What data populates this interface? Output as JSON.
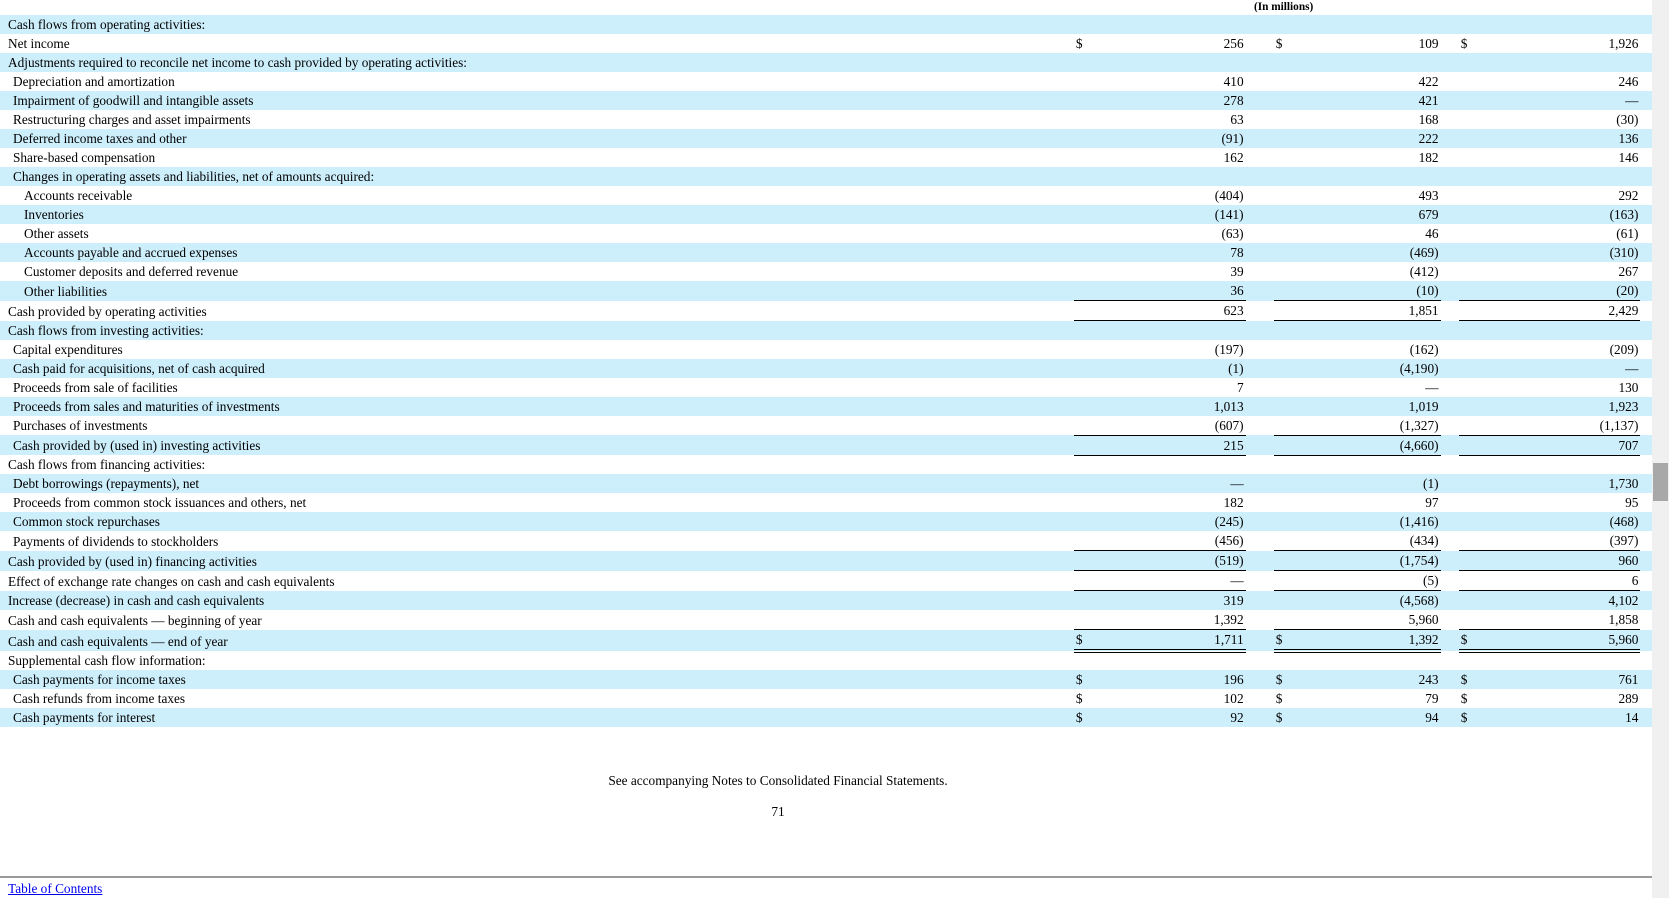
{
  "header": {
    "units_label": "(In millions)"
  },
  "table": {
    "rows": [
      {
        "label": "Cash flows from operating activities:",
        "indent": 0,
        "shade": true,
        "border": "none",
        "dollar": false,
        "values": null
      },
      {
        "label": "Net income",
        "indent": 0,
        "shade": false,
        "border": "none",
        "dollar": true,
        "values": [
          "256",
          "109",
          "1,926"
        ]
      },
      {
        "label": "Adjustments required to reconcile net income to cash provided by operating activities:",
        "indent": 0,
        "shade": true,
        "border": "none",
        "dollar": false,
        "values": null
      },
      {
        "label": "Depreciation and amortization",
        "indent": 1,
        "shade": false,
        "border": "none",
        "dollar": false,
        "values": [
          "410",
          "422",
          "246"
        ]
      },
      {
        "label": "Impairment of goodwill and intangible assets",
        "indent": 1,
        "shade": true,
        "border": "none",
        "dollar": false,
        "values": [
          "278",
          "421",
          "—"
        ]
      },
      {
        "label": "Restructuring charges and asset impairments",
        "indent": 1,
        "shade": false,
        "border": "none",
        "dollar": false,
        "values": [
          "63",
          "168",
          "(30)"
        ]
      },
      {
        "label": "Deferred income taxes and other",
        "indent": 1,
        "shade": true,
        "border": "none",
        "dollar": false,
        "values": [
          "(91)",
          "222",
          "136"
        ]
      },
      {
        "label": "Share-based compensation",
        "indent": 1,
        "shade": false,
        "border": "none",
        "dollar": false,
        "values": [
          "162",
          "182",
          "146"
        ]
      },
      {
        "label": "Changes in operating assets and liabilities, net of amounts acquired:",
        "indent": 1,
        "shade": true,
        "border": "none",
        "dollar": false,
        "values": null
      },
      {
        "label": "Accounts receivable",
        "indent": 2,
        "shade": false,
        "border": "none",
        "dollar": false,
        "values": [
          "(404)",
          "493",
          "292"
        ]
      },
      {
        "label": "Inventories",
        "indent": 2,
        "shade": true,
        "border": "none",
        "dollar": false,
        "values": [
          "(141)",
          "679",
          "(163)"
        ]
      },
      {
        "label": "Other assets",
        "indent": 2,
        "shade": false,
        "border": "none",
        "dollar": false,
        "values": [
          "(63)",
          "46",
          "(61)"
        ]
      },
      {
        "label": "Accounts payable and accrued expenses",
        "indent": 2,
        "shade": true,
        "border": "none",
        "dollar": false,
        "values": [
          "78",
          "(469)",
          "(310)"
        ]
      },
      {
        "label": "Customer deposits and deferred revenue",
        "indent": 2,
        "shade": false,
        "border": "none",
        "dollar": false,
        "values": [
          "39",
          "(412)",
          "267"
        ]
      },
      {
        "label": "Other liabilities",
        "indent": 2,
        "shade": true,
        "border": "single",
        "dollar": false,
        "values": [
          "36",
          "(10)",
          "(20)"
        ]
      },
      {
        "label": "Cash provided by operating activities",
        "indent": 0,
        "shade": false,
        "border": "single",
        "dollar": false,
        "values": [
          "623",
          "1,851",
          "2,429"
        ]
      },
      {
        "label": "Cash flows from investing activities:",
        "indent": 0,
        "shade": true,
        "border": "none",
        "dollar": false,
        "values": null
      },
      {
        "label": "Capital expenditures",
        "indent": 1,
        "shade": false,
        "border": "none",
        "dollar": false,
        "values": [
          "(197)",
          "(162)",
          "(209)"
        ]
      },
      {
        "label": "Cash paid for acquisitions, net of cash acquired",
        "indent": 1,
        "shade": true,
        "border": "none",
        "dollar": false,
        "values": [
          "(1)",
          "(4,190)",
          "—"
        ]
      },
      {
        "label": "Proceeds from sale of facilities",
        "indent": 1,
        "shade": false,
        "border": "none",
        "dollar": false,
        "values": [
          "7",
          "—",
          "130"
        ]
      },
      {
        "label": "Proceeds from sales and maturities of investments",
        "indent": 1,
        "shade": true,
        "border": "none",
        "dollar": false,
        "values": [
          "1,013",
          "1,019",
          "1,923"
        ]
      },
      {
        "label": "Purchases of investments",
        "indent": 1,
        "shade": false,
        "border": "single",
        "dollar": false,
        "values": [
          "(607)",
          "(1,327)",
          "(1,137)"
        ]
      },
      {
        "label": "Cash provided by (used in) investing activities",
        "indent": 1,
        "shade": true,
        "border": "single",
        "dollar": false,
        "values": [
          "215",
          "(4,660)",
          "707"
        ]
      },
      {
        "label": "Cash flows from financing activities:",
        "indent": 0,
        "shade": false,
        "border": "none",
        "dollar": false,
        "values": null
      },
      {
        "label": "Debt borrowings (repayments), net",
        "indent": 1,
        "shade": true,
        "border": "none",
        "dollar": false,
        "values": [
          "—",
          "(1)",
          "1,730"
        ]
      },
      {
        "label": "Proceeds from common stock issuances and others, net",
        "indent": 1,
        "shade": false,
        "border": "none",
        "dollar": false,
        "values": [
          "182",
          "97",
          "95"
        ]
      },
      {
        "label": "Common stock repurchases",
        "indent": 1,
        "shade": true,
        "border": "none",
        "dollar": false,
        "values": [
          "(245)",
          "(1,416)",
          "(468)"
        ]
      },
      {
        "label": "Payments of dividends to stockholders",
        "indent": 1,
        "shade": false,
        "border": "single",
        "dollar": false,
        "values": [
          "(456)",
          "(434)",
          "(397)"
        ]
      },
      {
        "label": "Cash provided by (used in) financing activities",
        "indent": 0,
        "shade": true,
        "border": "single",
        "dollar": false,
        "values": [
          "(519)",
          "(1,754)",
          "960"
        ]
      },
      {
        "label": "Effect of exchange rate changes on cash and cash equivalents",
        "indent": 0,
        "shade": false,
        "border": "single",
        "dollar": false,
        "values": [
          "—",
          "(5)",
          "6"
        ]
      },
      {
        "label": "Increase (decrease) in cash and cash equivalents",
        "indent": 0,
        "shade": true,
        "border": "none",
        "dollar": false,
        "values": [
          "319",
          "(4,568)",
          "4,102"
        ]
      },
      {
        "label": "Cash and cash equivalents — beginning of year",
        "indent": 0,
        "shade": false,
        "border": "single",
        "dollar": false,
        "values": [
          "1,392",
          "5,960",
          "1,858"
        ]
      },
      {
        "label": "Cash and cash equivalents — end of year",
        "indent": 0,
        "shade": true,
        "border": "double",
        "dollar": true,
        "values": [
          "1,711",
          "1,392",
          "5,960"
        ]
      },
      {
        "label": "Supplemental cash flow information:",
        "indent": 0,
        "shade": false,
        "border": "none",
        "dollar": false,
        "values": null
      },
      {
        "label": "Cash payments for income taxes",
        "indent": 1,
        "shade": true,
        "border": "none",
        "dollar": true,
        "values": [
          "196",
          "243",
          "761"
        ]
      },
      {
        "label": "Cash refunds from income taxes",
        "indent": 1,
        "shade": false,
        "border": "none",
        "dollar": true,
        "values": [
          "102",
          "79",
          "289"
        ]
      },
      {
        "label": "Cash payments for interest",
        "indent": 1,
        "shade": true,
        "border": "none",
        "dollar": true,
        "values": [
          "92",
          "94",
          "14"
        ]
      }
    ]
  },
  "footer": {
    "notes_line": "See accompanying Notes to Consolidated Financial Statements.",
    "page_number": "71",
    "toc_link_label": "Table of Contents"
  },
  "colors": {
    "row_highlight": "#cdeefb",
    "link": "#0000ee"
  }
}
